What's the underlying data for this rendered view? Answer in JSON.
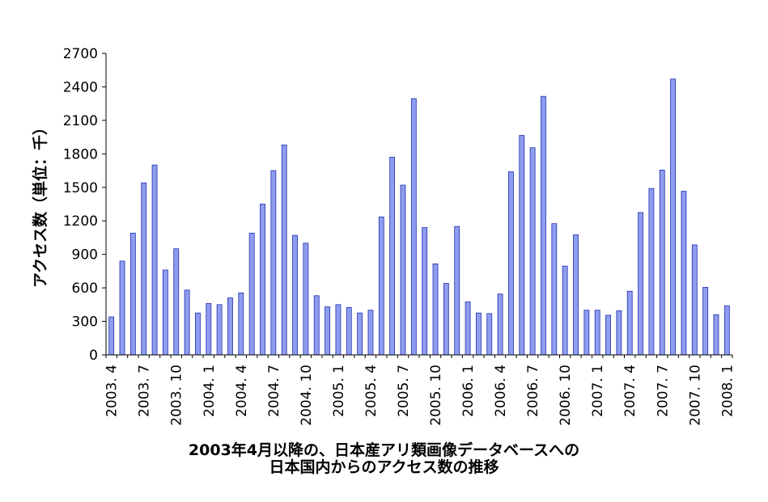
{
  "caption": {
    "line1": "2003年4月以降の、日本産アリ類画像データベースへの",
    "line2": "日本国内からのアクセス数の推移"
  },
  "chart_data": {
    "type": "bar",
    "ylabel": "アクセス数（単位：千）",
    "ylim": [
      0,
      2700
    ],
    "yticks": [
      0,
      300,
      600,
      900,
      1200,
      1500,
      1800,
      2100,
      2400,
      2700
    ],
    "bar_color": "#8f9dee",
    "bar_edge_color": "#1f2fb0",
    "categories": [
      "2003.4",
      "2003.5",
      "2003.6",
      "2003.7",
      "2003.8",
      "2003.9",
      "2003.10",
      "2003.11",
      "2003.12",
      "2004.1",
      "2004.2",
      "2004.3",
      "2004.4",
      "2004.5",
      "2004.6",
      "2004.7",
      "2004.8",
      "2004.9",
      "2004.10",
      "2004.11",
      "2004.12",
      "2005.1",
      "2005.2",
      "2005.3",
      "2005.4",
      "2005.5",
      "2005.6",
      "2005.7",
      "2005.8",
      "2005.9",
      "2005.10",
      "2005.11",
      "2005.12",
      "2006.1",
      "2006.2",
      "2006.3",
      "2006.4",
      "2006.5",
      "2006.6",
      "2006.7",
      "2006.8",
      "2006.9",
      "2006.10",
      "2006.11",
      "2006.12",
      "2007.1",
      "2007.2",
      "2007.3",
      "2007.4",
      "2007.5",
      "2007.6",
      "2007.7",
      "2007.8",
      "2007.9",
      "2007.10",
      "2007.11",
      "2007.12",
      "2008.1"
    ],
    "values": [
      340,
      840,
      1090,
      1540,
      1700,
      760,
      950,
      580,
      375,
      460,
      450,
      510,
      555,
      1090,
      1350,
      1650,
      1880,
      1070,
      1000,
      530,
      430,
      450,
      425,
      375,
      400,
      1235,
      1770,
      1520,
      2295,
      1140,
      815,
      640,
      1150,
      475,
      375,
      370,
      545,
      1640,
      1965,
      1855,
      2315,
      1175,
      795,
      1075,
      400,
      400,
      355,
      395,
      570,
      1275,
      1490,
      1655,
      2470,
      1465,
      985,
      605,
      360,
      440
    ],
    "xtick_labels": [
      {
        "index": 0,
        "label": "2003. 4"
      },
      {
        "index": 3,
        "label": "2003. 7"
      },
      {
        "index": 6,
        "label": "2003. 10"
      },
      {
        "index": 9,
        "label": "2004. 1"
      },
      {
        "index": 12,
        "label": "2004. 4"
      },
      {
        "index": 15,
        "label": "2004. 7"
      },
      {
        "index": 18,
        "label": "2004. 10"
      },
      {
        "index": 21,
        "label": "2005. 1"
      },
      {
        "index": 24,
        "label": "2005. 4"
      },
      {
        "index": 27,
        "label": "2005. 7"
      },
      {
        "index": 30,
        "label": "2005. 10"
      },
      {
        "index": 33,
        "label": "2006. 1"
      },
      {
        "index": 36,
        "label": "2006. 4"
      },
      {
        "index": 39,
        "label": "2006. 7"
      },
      {
        "index": 42,
        "label": "2006. 10"
      },
      {
        "index": 45,
        "label": "2007. 1"
      },
      {
        "index": 48,
        "label": "2007. 4"
      },
      {
        "index": 51,
        "label": "2007. 7"
      },
      {
        "index": 54,
        "label": "2007. 10"
      },
      {
        "index": 57,
        "label": "2008. 1"
      }
    ]
  }
}
